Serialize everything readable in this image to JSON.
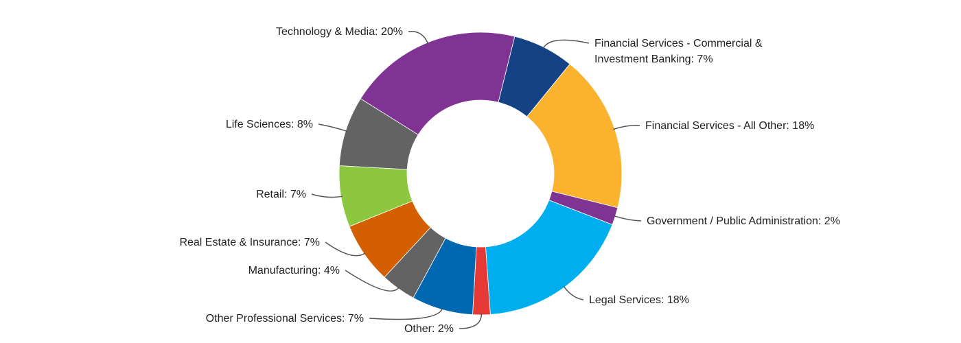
{
  "chart_data": {
    "type": "pie",
    "donut": true,
    "title": "",
    "legend": "none",
    "label_format": "{name}: {value}%",
    "slices": [
      {
        "name": "Financial Services - Commercial & Investment Banking",
        "value": 7,
        "color": "#154285",
        "label_lines": [
          "Financial Services - Commercial &",
          "Investment Banking: 7%"
        ]
      },
      {
        "name": "Financial Services - All Other",
        "value": 18,
        "color": "#FBB22E",
        "label_lines": [
          "Financial Services - All Other: 18%"
        ]
      },
      {
        "name": "Government / Public Administration",
        "value": 2,
        "color": "#7F3393",
        "label_lines": [
          "Government / Public Administration: 2%"
        ]
      },
      {
        "name": "Legal Services",
        "value": 18,
        "color": "#00AEEF",
        "label_lines": [
          "Legal Services: 18%"
        ]
      },
      {
        "name": "Other",
        "value": 2,
        "color": "#E53935",
        "label_lines": [
          "Other: 2%"
        ]
      },
      {
        "name": "Other Professional Services",
        "value": 7,
        "color": "#0067B1",
        "label_lines": [
          "Other Professional Services: 7%"
        ]
      },
      {
        "name": "Manufacturing",
        "value": 4,
        "color": "#636363",
        "label_lines": [
          "Manufacturing: 4%"
        ]
      },
      {
        "name": "Real Estate & Insurance",
        "value": 7,
        "color": "#D35F00",
        "label_lines": [
          "Real Estate & Insurance: 7%"
        ]
      },
      {
        "name": "Retail",
        "value": 7,
        "color": "#8DC63F",
        "label_lines": [
          "Retail: 7%"
        ]
      },
      {
        "name": "Life Sciences",
        "value": 8,
        "color": "#636363",
        "label_lines": [
          "Life Sciences: 8%"
        ]
      },
      {
        "name": "Technology & Media",
        "value": 20,
        "color": "#7F3393",
        "label_lines": [
          "Technology & Media: 20%"
        ]
      }
    ]
  }
}
